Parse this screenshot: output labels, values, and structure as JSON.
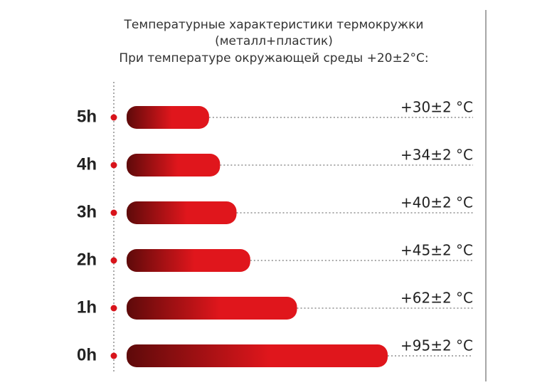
{
  "chart_data": {
    "type": "bar",
    "orientation": "horizontal",
    "title": "Температурные характеристики термокружки",
    "subtitle": "(металл+пластик)",
    "note": "При температуре окружающей среды +20±2°C:",
    "categories": [
      "5h",
      "4h",
      "3h",
      "2h",
      "1h",
      "0h"
    ],
    "values": [
      30,
      34,
      40,
      45,
      62,
      95
    ],
    "value_labels": [
      "+30±2 °C",
      "+34±2 °C",
      "+40±2 °C",
      "+45±2 °C",
      "+62±2 °C",
      "+95±2 °C"
    ],
    "color": "#e0161c"
  }
}
